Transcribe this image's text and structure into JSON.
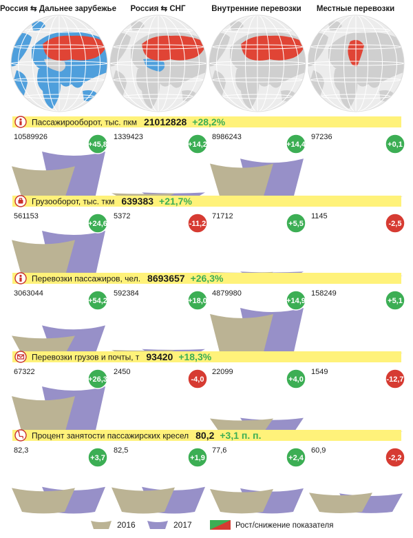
{
  "columns": [
    {
      "label": "Россия ⇆ Дальнее зарубежье"
    },
    {
      "label": "Россия ⇆ СНГ"
    },
    {
      "label": "Внутренние перевозки"
    },
    {
      "label": "Местные перевозки"
    }
  ],
  "colors": {
    "y2016": "#bbb394",
    "y2017": "#9790c8",
    "growth": "#3cae54",
    "decline": "#d63b32",
    "band": "#fff27a",
    "map_land": "#cfcfcf",
    "map_ocean": "#ececec",
    "russia": "#e04435",
    "partner": "#4f9fdc",
    "total_change": "#3cae54"
  },
  "chart_data": [
    {
      "type": "bar",
      "icon": "person-icon",
      "title": "Пассажирооборот, тыс. пкм",
      "total": "21012828",
      "total_change": "+28,2%",
      "categories": [
        "Россия ⇆ Дальнее зарубежье",
        "Россия ⇆ СНГ",
        "Внутренние перевозки",
        "Местные перевозки"
      ],
      "values_2017": [
        10589926,
        1339423,
        8986243,
        97236
      ],
      "labels_2017": [
        "10589926",
        "1339423",
        "8986243",
        "97236"
      ],
      "changes": [
        45.8,
        14.2,
        14.4,
        0.1
      ],
      "change_labels": [
        "+45,8",
        "+14,2",
        "+14,4",
        "+0,1"
      ]
    },
    {
      "type": "bar",
      "icon": "luggage-icon",
      "title": "Грузооборот, тыс. ткм",
      "total": "639383",
      "total_change": "+21,7%",
      "categories": [
        "Россия ⇆ Дальнее зарубежье",
        "Россия ⇆ СНГ",
        "Внутренние перевозки",
        "Местные перевозки"
      ],
      "values_2017": [
        561153,
        5372,
        71712,
        1145
      ],
      "labels_2017": [
        "561153",
        "5372",
        "71712",
        "1145"
      ],
      "changes": [
        24.6,
        -11.2,
        5.5,
        -2.5
      ],
      "change_labels": [
        "+24,6",
        "-11,2",
        "+5,5",
        "-2,5"
      ]
    },
    {
      "type": "bar",
      "icon": "person-icon",
      "title": "Перевозки пассажиров, чел.",
      "total": "8693657",
      "total_change": "+26,3%",
      "categories": [
        "Россия ⇆ Дальнее зарубежье",
        "Россия ⇆ СНГ",
        "Внутренние перевозки",
        "Местные перевозки"
      ],
      "values_2017": [
        3063044,
        592384,
        4879980,
        158249
      ],
      "labels_2017": [
        "3063044",
        "592384",
        "4879980",
        "158249"
      ],
      "changes": [
        54.2,
        18.0,
        14.9,
        5.1
      ],
      "change_labels": [
        "+54,2",
        "+18,0",
        "+14,9",
        "+5,1"
      ]
    },
    {
      "type": "bar",
      "icon": "envelope-icon",
      "title": "Перевозки грузов и почты, т",
      "total": "93420",
      "total_change": "+18,3%",
      "categories": [
        "Россия ⇆ Дальнее зарубежье",
        "Россия ⇆ СНГ",
        "Внутренние перевозки",
        "Местные перевозки"
      ],
      "values_2017": [
        67322,
        2450,
        22099,
        1549
      ],
      "labels_2017": [
        "67322",
        "2450",
        "22099",
        "1549"
      ],
      "changes": [
        26.3,
        -4.0,
        4.0,
        -12.7
      ],
      "change_labels": [
        "+26,3",
        "-4,0",
        "+4,0",
        "-12,7"
      ]
    },
    {
      "type": "bar",
      "icon": "seat-icon",
      "title": "Процент занятости пассажирских кресел",
      "total": "80,2",
      "total_change": "+3,1 п. п.",
      "categories": [
        "Россия ⇆ Дальнее зарубежье",
        "Россия ⇆ СНГ",
        "Внутренние перевозки",
        "Местные перевозки"
      ],
      "values_2017": [
        82.3,
        82.5,
        77.6,
        60.9
      ],
      "labels_2017": [
        "82,3",
        "82,5",
        "77,6",
        "60,9"
      ],
      "changes": [
        3.7,
        1.9,
        2.4,
        -2.2
      ],
      "change_labels": [
        "+3,7",
        "+1,9",
        "+2,4",
        "-2,2"
      ]
    }
  ],
  "legend": {
    "y2016": "2016",
    "y2017": "2017",
    "change": "Рост/снижение показателя"
  }
}
